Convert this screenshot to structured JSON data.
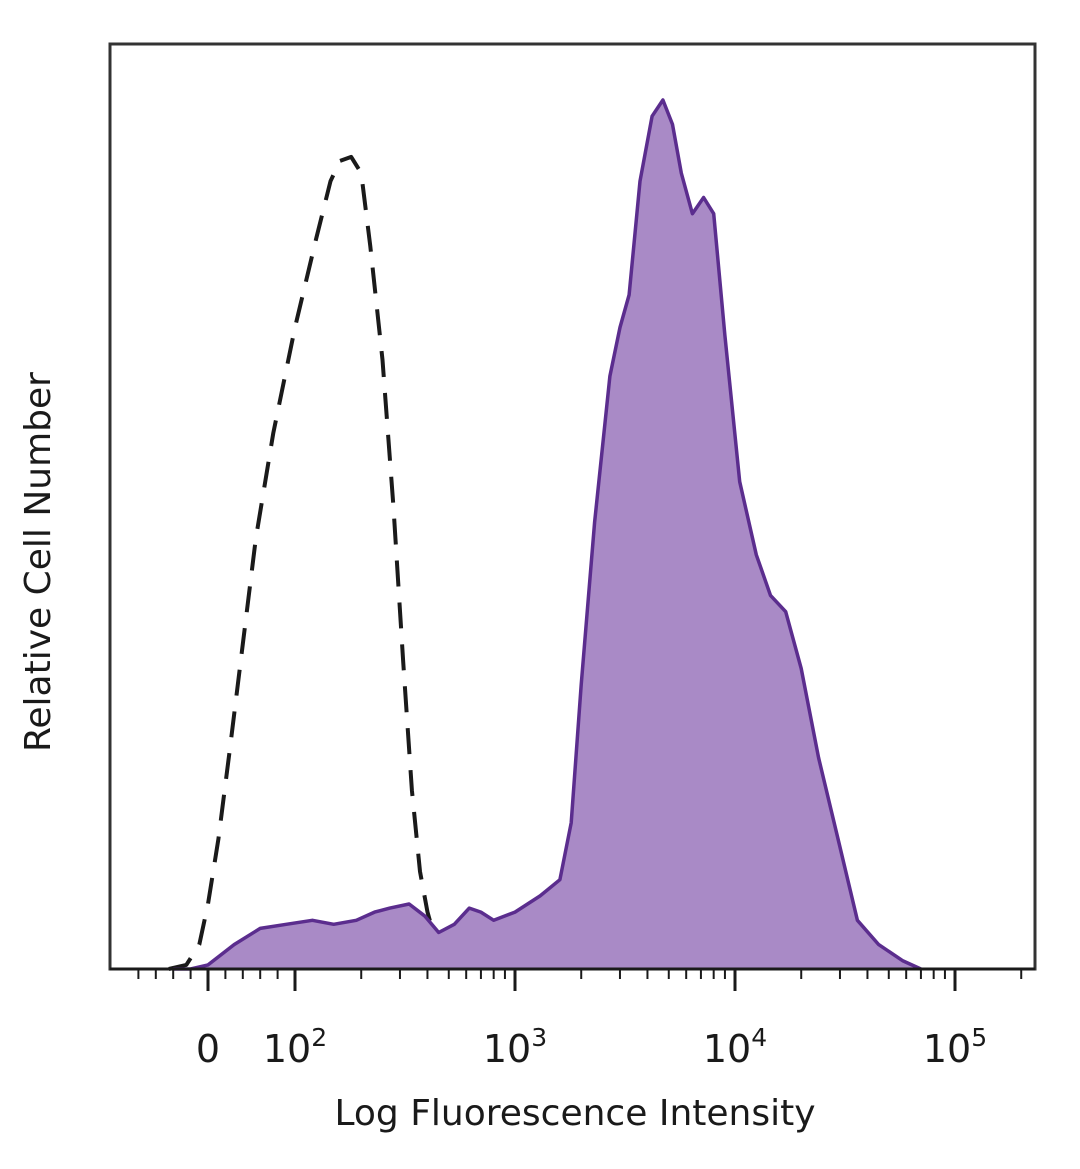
{
  "chart_data": {
    "type": "area",
    "title": "",
    "xlabel": "Log Fluorescence Intensity",
    "ylabel": "Relative Cell Number",
    "x_scale": "biexponential (log above 10^2)",
    "xlim": [
      -100,
      300000
    ],
    "ylim": [
      0,
      1.05
    ],
    "x_ticks": [
      {
        "value": 0,
        "base": "0",
        "exp": ""
      },
      {
        "value": 100,
        "base": "10",
        "exp": "2"
      },
      {
        "value": 1000,
        "base": "10",
        "exp": "3"
      },
      {
        "value": 10000,
        "base": "10",
        "exp": "4"
      },
      {
        "value": 100000,
        "base": "10",
        "exp": "5"
      }
    ],
    "grid": false,
    "legend": "none",
    "series": [
      {
        "style": "dashed",
        "color": "#1a1a1a",
        "filled": false,
        "points": [
          [
            -45,
            0.0
          ],
          [
            -25,
            0.005
          ],
          [
            -10,
            0.03
          ],
          [
            0,
            0.08
          ],
          [
            12,
            0.16
          ],
          [
            25,
            0.27
          ],
          [
            40,
            0.4
          ],
          [
            55,
            0.53
          ],
          [
            75,
            0.66
          ],
          [
            100,
            0.79
          ],
          [
            125,
            0.9
          ],
          [
            145,
            0.97
          ],
          [
            160,
            0.995
          ],
          [
            180,
            1.0
          ],
          [
            200,
            0.98
          ],
          [
            220,
            0.89
          ],
          [
            250,
            0.75
          ],
          [
            280,
            0.57
          ],
          [
            310,
            0.38
          ],
          [
            340,
            0.22
          ],
          [
            370,
            0.12
          ],
          [
            400,
            0.07
          ],
          [
            430,
            0.04
          ],
          [
            470,
            0.015
          ],
          [
            520,
            0.0
          ]
        ]
      },
      {
        "style": "solid",
        "color": "#5b2d8e",
        "fill": "#a98ac6",
        "filled": true,
        "points": [
          [
            -40,
            0.0
          ],
          [
            -20,
            0.0
          ],
          [
            0,
            0.005
          ],
          [
            30,
            0.03
          ],
          [
            60,
            0.05
          ],
          [
            90,
            0.055
          ],
          [
            120,
            0.06
          ],
          [
            150,
            0.055
          ],
          [
            190,
            0.06
          ],
          [
            230,
            0.07
          ],
          [
            270,
            0.075
          ],
          [
            330,
            0.08
          ],
          [
            390,
            0.065
          ],
          [
            450,
            0.045
          ],
          [
            530,
            0.055
          ],
          [
            620,
            0.075
          ],
          [
            700,
            0.07
          ],
          [
            800,
            0.06
          ],
          [
            1000,
            0.07
          ],
          [
            1300,
            0.09
          ],
          [
            1600,
            0.11
          ],
          [
            1800,
            0.18
          ],
          [
            2000,
            0.35
          ],
          [
            2300,
            0.55
          ],
          [
            2700,
            0.73
          ],
          [
            3000,
            0.79
          ],
          [
            3300,
            0.83
          ],
          [
            3700,
            0.97
          ],
          [
            4200,
            1.05
          ],
          [
            4700,
            1.07
          ],
          [
            5200,
            1.04
          ],
          [
            5700,
            0.98
          ],
          [
            6400,
            0.93
          ],
          [
            7200,
            0.95
          ],
          [
            8000,
            0.93
          ],
          [
            9000,
            0.78
          ],
          [
            10500,
            0.6
          ],
          [
            12500,
            0.51
          ],
          [
            14500,
            0.46
          ],
          [
            17000,
            0.44
          ],
          [
            20000,
            0.37
          ],
          [
            24000,
            0.26
          ],
          [
            30000,
            0.15
          ],
          [
            36000,
            0.06
          ],
          [
            45000,
            0.03
          ],
          [
            58000,
            0.01
          ],
          [
            70000,
            0.0
          ]
        ]
      }
    ]
  }
}
